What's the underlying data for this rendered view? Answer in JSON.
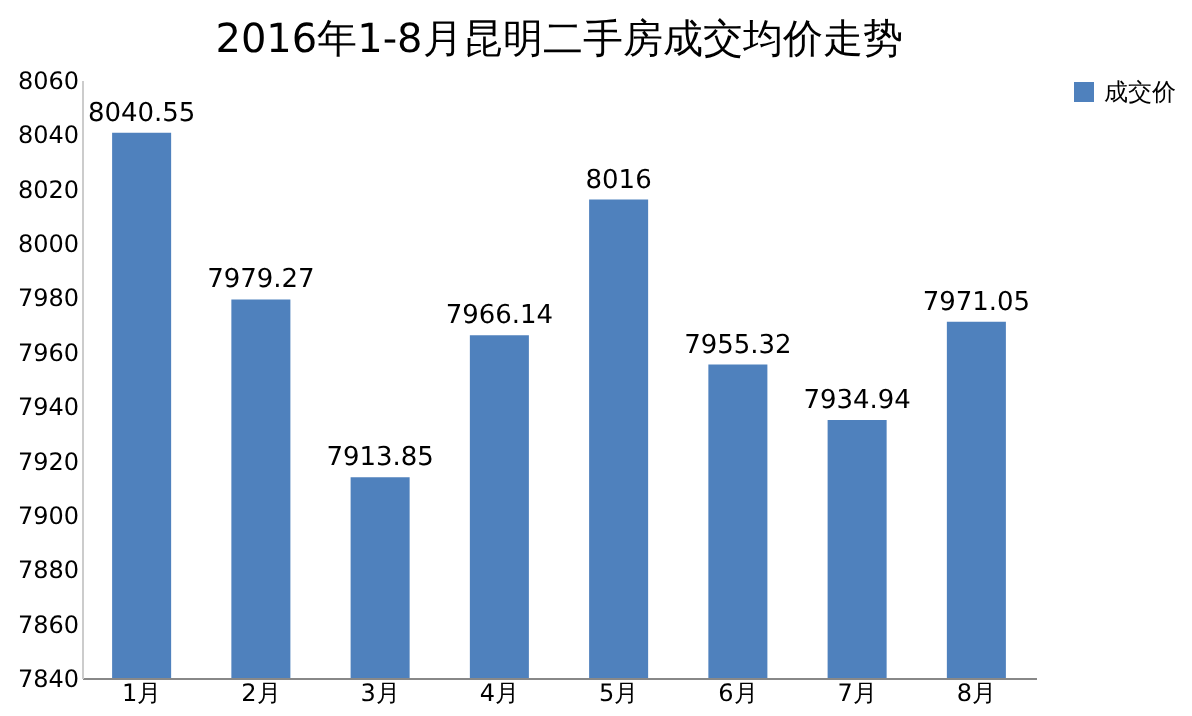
{
  "chart_data": {
    "type": "bar",
    "title": "2016年1-8月昆明二手房成交均价走势",
    "categories": [
      "1月",
      "2月",
      "3月",
      "4月",
      "5月",
      "6月",
      "7月",
      "8月"
    ],
    "series": [
      {
        "name": "成交价",
        "color": "#4f81bd",
        "values": [
          8040.55,
          7979.27,
          7913.85,
          7966.14,
          8016,
          7955.32,
          7934.94,
          7971.05
        ]
      }
    ],
    "ylim": [
      7840,
      8060
    ],
    "yticks": [
      7840,
      7860,
      7880,
      7900,
      7920,
      7940,
      7960,
      7980,
      8000,
      8020,
      8040,
      8060
    ],
    "grid": false,
    "legend": "right",
    "data_labels": true
  }
}
